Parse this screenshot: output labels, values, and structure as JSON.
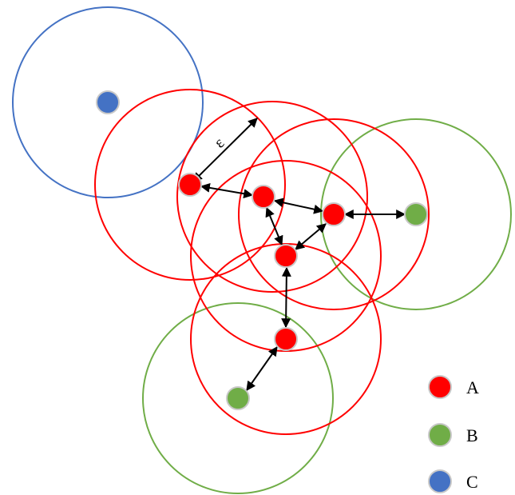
{
  "epsilon_label": "ε",
  "colors": {
    "A": "#ff0000",
    "B": "#70ad47",
    "C": "#4472c4"
  },
  "legend": [
    {
      "class": "A",
      "label": "A"
    },
    {
      "class": "B",
      "label": "B"
    },
    {
      "class": "C",
      "label": "C"
    }
  ]
}
